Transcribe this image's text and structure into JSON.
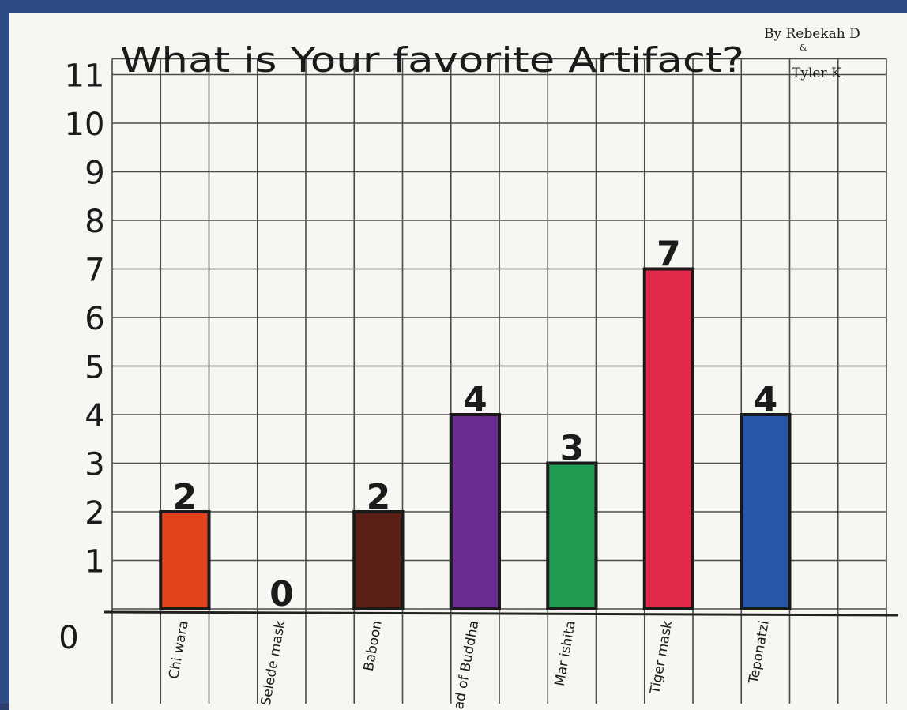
{
  "chart_data": {
    "type": "bar",
    "title": "What is Your favorite Artifact?",
    "byline": {
      "line1": "By Rebekah D",
      "amp": "&",
      "line2": "Tyler K"
    },
    "categories": [
      "Chi wara",
      "Selede mask",
      "Baboon",
      "Head of Buddha",
      "Mar ishita",
      "Tiger mask",
      "Teponatzi"
    ],
    "values": [
      2,
      0,
      2,
      4,
      3,
      7,
      4
    ],
    "value_labels": [
      "2",
      "0",
      "2",
      "4",
      "3",
      "7",
      "4"
    ],
    "bar_colors": [
      "#e2421c",
      "#222222",
      "#5a1f16",
      "#6a2c90",
      "#1f9c52",
      "#e32a4a",
      "#2957a8"
    ],
    "yticks": [
      "0",
      "1",
      "2",
      "3",
      "4",
      "5",
      "6",
      "7",
      "8",
      "9",
      "10",
      "11"
    ],
    "ylim": [
      0,
      11
    ],
    "grid": true,
    "xlabel": "",
    "ylabel": ""
  }
}
